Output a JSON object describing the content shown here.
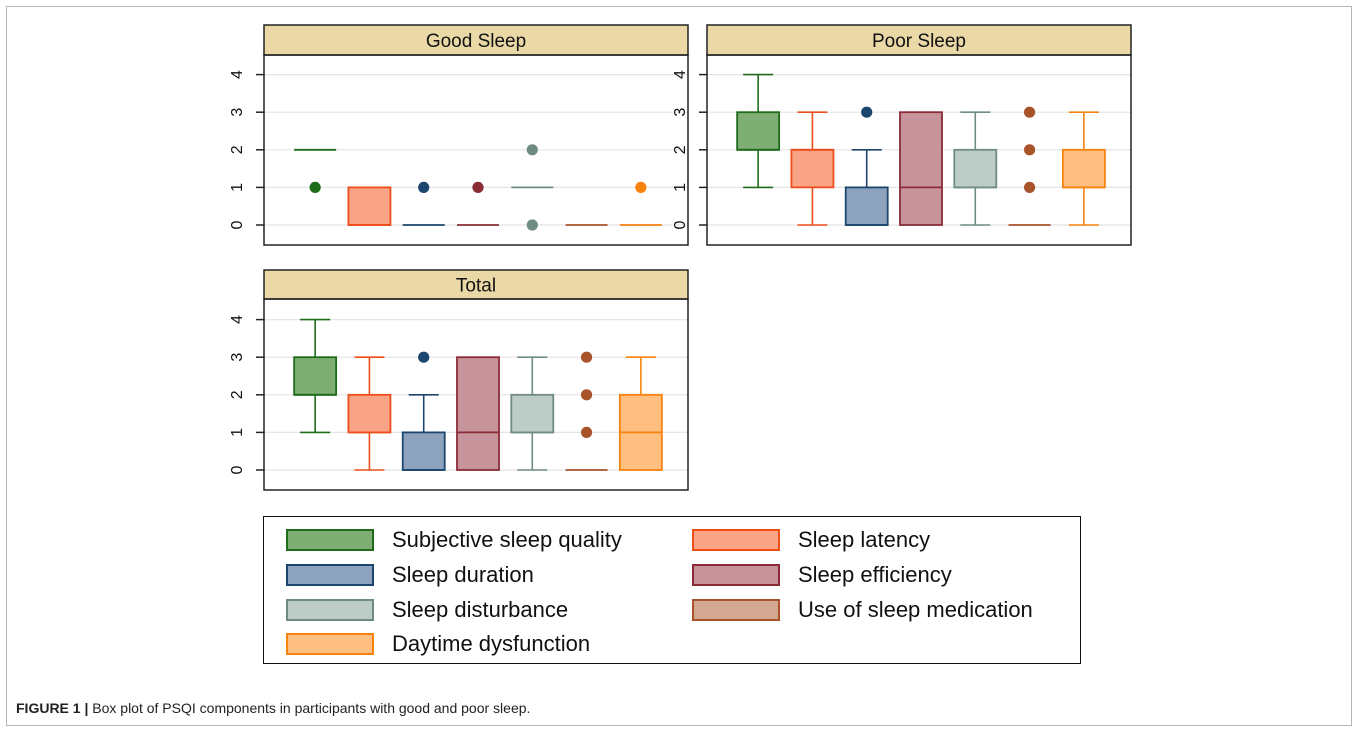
{
  "caption": {
    "label": "FIGURE 1 |",
    "text": "Box plot of PSQI components in participants with good and poor sleep."
  },
  "colors": {
    "panel_header_bg": "#ead9a6",
    "grid": "#e4e4e4",
    "axis": "#222222"
  },
  "chart_data": {
    "type": "box",
    "yticks": [
      0,
      1,
      2,
      3,
      4
    ],
    "ylim": [
      -0.5,
      4.7
    ],
    "grid": true,
    "legend_position": "bottom",
    "series": [
      {
        "name": "Subjective sleep quality",
        "fill": "#7fae75",
        "stroke": "#1e6b1a"
      },
      {
        "name": "Sleep latency",
        "fill": "#f9a487",
        "stroke": "#ee4d1c"
      },
      {
        "name": "Sleep duration",
        "fill": "#8ca2bd",
        "stroke": "#1d466f"
      },
      {
        "name": "Sleep efficiency",
        "fill": "#c8949c",
        "stroke": "#8a2c36"
      },
      {
        "name": "Sleep disturbance",
        "fill": "#bdccc6",
        "stroke": "#6e8c80"
      },
      {
        "name": "Use of sleep medication",
        "fill": "#d4a792",
        "stroke": "#a9532b"
      },
      {
        "name": "Daytime dysfunction",
        "fill": "#ffbf80",
        "stroke": "#f7820d"
      }
    ],
    "panels": [
      {
        "title": "Good Sleep",
        "boxes": [
          {
            "q1": 2,
            "median": 2,
            "q3": 2,
            "whisker_low": 2,
            "whisker_high": 2,
            "outliers": [
              1
            ]
          },
          {
            "q1": 0,
            "median": 0,
            "q3": 1,
            "whisker_low": 0,
            "whisker_high": 1,
            "outliers": []
          },
          {
            "q1": 0,
            "median": 0,
            "q3": 0,
            "whisker_low": 0,
            "whisker_high": 0,
            "outliers": [
              1
            ]
          },
          {
            "q1": 0,
            "median": 0,
            "q3": 0,
            "whisker_low": 0,
            "whisker_high": 0,
            "outliers": [
              1
            ]
          },
          {
            "q1": 1,
            "median": 1,
            "q3": 1,
            "whisker_low": 1,
            "whisker_high": 1,
            "outliers": [
              0,
              2
            ]
          },
          {
            "q1": 0,
            "median": 0,
            "q3": 0,
            "whisker_low": 0,
            "whisker_high": 0,
            "outliers": []
          },
          {
            "q1": 0,
            "median": 0,
            "q3": 0,
            "whisker_low": 0,
            "whisker_high": 0,
            "outliers": [
              1
            ]
          }
        ]
      },
      {
        "title": "Poor Sleep",
        "boxes": [
          {
            "q1": 2,
            "median": 2,
            "q3": 3,
            "whisker_low": 1,
            "whisker_high": 4,
            "outliers": []
          },
          {
            "q1": 1,
            "median": 2,
            "q3": 2,
            "whisker_low": 0,
            "whisker_high": 3,
            "outliers": []
          },
          {
            "q1": 0,
            "median": 0,
            "q3": 1,
            "whisker_low": 0,
            "whisker_high": 2,
            "outliers": [
              3
            ]
          },
          {
            "q1": 0,
            "median": 1,
            "q3": 3,
            "whisker_low": 0,
            "whisker_high": 3,
            "outliers": []
          },
          {
            "q1": 1,
            "median": 1,
            "q3": 2,
            "whisker_low": 0,
            "whisker_high": 3,
            "outliers": []
          },
          {
            "q1": 0,
            "median": 0,
            "q3": 0,
            "whisker_low": 0,
            "whisker_high": 0,
            "outliers": [
              1,
              2,
              3
            ]
          },
          {
            "q1": 1,
            "median": 1,
            "q3": 2,
            "whisker_low": 0,
            "whisker_high": 3,
            "outliers": []
          }
        ]
      },
      {
        "title": "Total",
        "boxes": [
          {
            "q1": 2,
            "median": 2,
            "q3": 3,
            "whisker_low": 1,
            "whisker_high": 4,
            "outliers": []
          },
          {
            "q1": 1,
            "median": 1,
            "q3": 2,
            "whisker_low": 0,
            "whisker_high": 3,
            "outliers": []
          },
          {
            "q1": 0,
            "median": 0,
            "q3": 1,
            "whisker_low": 0,
            "whisker_high": 2,
            "outliers": [
              3
            ]
          },
          {
            "q1": 0,
            "median": 1,
            "q3": 3,
            "whisker_low": 0,
            "whisker_high": 3,
            "outliers": []
          },
          {
            "q1": 1,
            "median": 1,
            "q3": 2,
            "whisker_low": 0,
            "whisker_high": 3,
            "outliers": []
          },
          {
            "q1": 0,
            "median": 0,
            "q3": 0,
            "whisker_low": 0,
            "whisker_high": 0,
            "outliers": [
              1,
              2,
              3
            ]
          },
          {
            "q1": 0,
            "median": 1,
            "q3": 2,
            "whisker_low": 0,
            "whisker_high": 3,
            "outliers": []
          }
        ]
      }
    ]
  }
}
